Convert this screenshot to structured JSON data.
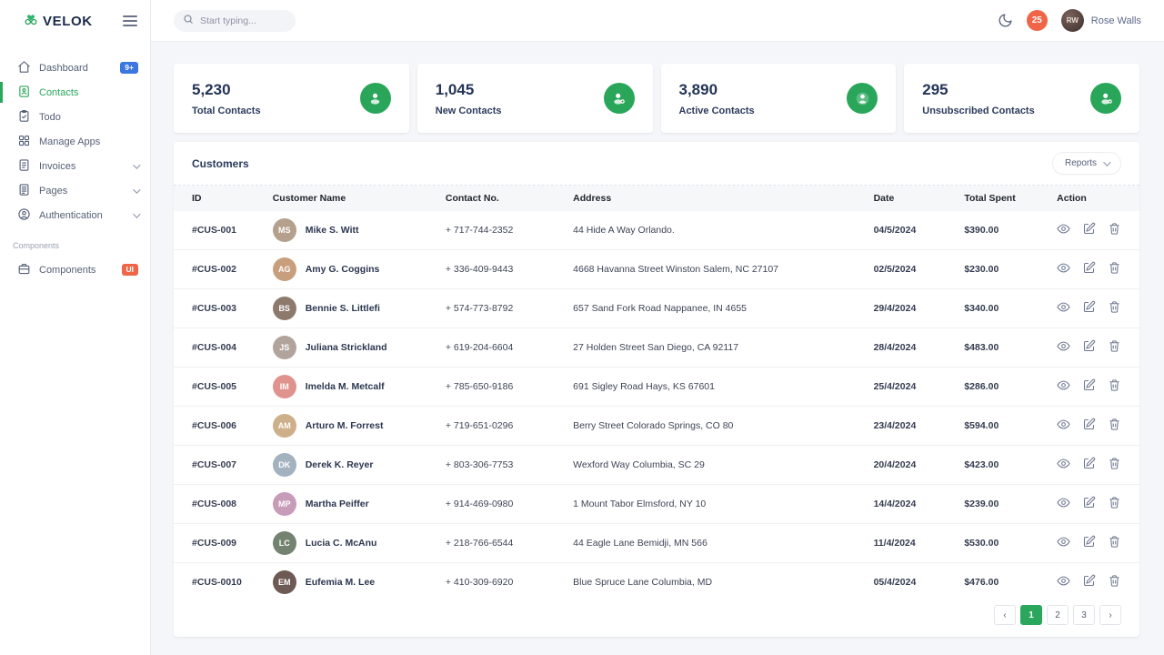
{
  "brand": {
    "name": "VELOK"
  },
  "topbar": {
    "search_placeholder": "Start typing...",
    "notification_count": "25",
    "user_name": "Rose Walls",
    "user_initials": "RW"
  },
  "colors": {
    "accent_green": "#2aa75c",
    "badge_blue": "#3b76e1",
    "badge_red": "#f06548"
  },
  "sidebar": {
    "items": [
      {
        "label": "Dashboard",
        "icon": "home",
        "badge": "9+",
        "badge_color": "#3b76e1"
      },
      {
        "label": "Contacts",
        "icon": "contacts",
        "active": true
      },
      {
        "label": "Todo",
        "icon": "todo"
      },
      {
        "label": "Manage Apps",
        "icon": "apps"
      },
      {
        "label": "Invoices",
        "icon": "invoice",
        "chevron": true
      },
      {
        "label": "Pages",
        "icon": "pages",
        "chevron": true
      },
      {
        "label": "Authentication",
        "icon": "auth",
        "chevron": true
      }
    ],
    "section_label": "Components",
    "components_item": {
      "label": "Components",
      "icon": "components",
      "badge": "UI",
      "badge_color": "#f06548"
    }
  },
  "stats": [
    {
      "value": "5,230",
      "label": "Total Contacts",
      "icon": "users"
    },
    {
      "value": "1,045",
      "label": "New Contacts",
      "icon": "user-plus"
    },
    {
      "value": "3,890",
      "label": "Active Contacts",
      "icon": "user"
    },
    {
      "value": "295",
      "label": "Unsubscribed Contacts",
      "icon": "user-x"
    }
  ],
  "customers": {
    "title": "Customers",
    "reports_label": "Reports",
    "columns": [
      "ID",
      "Customer Name",
      "Contact No.",
      "Address",
      "Date",
      "Total Spent",
      "Action"
    ],
    "rows": [
      {
        "id": "#CUS-001",
        "name": "Mike S. Witt",
        "phone": "+ 717-744-2352",
        "address": "44 Hide A Way Orlando.",
        "date": "04/5/2024",
        "total": "$390.00",
        "avatar_color": "#b5a08d"
      },
      {
        "id": "#CUS-002",
        "name": "Amy G. Coggins",
        "phone": "+ 336-409-9443",
        "address": "4668 Havanna Street Winston Salem, NC 27107",
        "date": "02/5/2024",
        "total": "$230.00",
        "avatar_color": "#c89f7d"
      },
      {
        "id": "#CUS-003",
        "name": "Bennie S. Littlefi",
        "phone": "+ 574-773-8792",
        "address": "657 Sand Fork Road Nappanee, IN 4655",
        "date": "29/4/2024",
        "total": "$340.00",
        "avatar_color": "#8d7a6d"
      },
      {
        "id": "#CUS-004",
        "name": "Juliana Strickland",
        "phone": "+ 619-204-6604",
        "address": "27 Holden Street San Diego, CA 92117",
        "date": "28/4/2024",
        "total": "$483.00",
        "avatar_color": "#b1a49c"
      },
      {
        "id": "#CUS-005",
        "name": "Imelda M. Metcalf",
        "phone": "+ 785-650-9186",
        "address": "691 Sigley Road Hays, KS 67601",
        "date": "25/4/2024",
        "total": "$286.00",
        "avatar_color": "#e0938e"
      },
      {
        "id": "#CUS-006",
        "name": "Arturo M. Forrest",
        "phone": "+ 719-651-0296",
        "address": "Berry Street Colorado Springs, CO 80",
        "date": "23/4/2024",
        "total": "$594.00",
        "avatar_color": "#cdb08a"
      },
      {
        "id": "#CUS-007",
        "name": "Derek K. Reyer",
        "phone": "+ 803-306-7753",
        "address": "Wexford Way Columbia, SC 29",
        "date": "20/4/2024",
        "total": "$423.00",
        "avatar_color": "#a3b2bf"
      },
      {
        "id": "#CUS-008",
        "name": "Martha Peiffer",
        "phone": "+ 914-469-0980",
        "address": "1 Mount Tabor Elmsford, NY 10",
        "date": "14/4/2024",
        "total": "$239.00",
        "avatar_color": "#c79cb8"
      },
      {
        "id": "#CUS-009",
        "name": "Lucia C. McAnu",
        "phone": "+ 218-766-6544",
        "address": "44 Eagle Lane Bemidji, MN 566",
        "date": "11/4/2024",
        "total": "$530.00",
        "avatar_color": "#74836f"
      },
      {
        "id": "#CUS-0010",
        "name": "Eufemia M. Lee",
        "phone": "+ 410-309-6920",
        "address": "Blue Spruce Lane Columbia, MD",
        "date": "05/4/2024",
        "total": "$476.00",
        "avatar_color": "#6d5a55"
      }
    ],
    "pagination": {
      "prev": "‹",
      "pages": [
        "1",
        "2",
        "3"
      ],
      "active": "1",
      "next": "›"
    }
  }
}
